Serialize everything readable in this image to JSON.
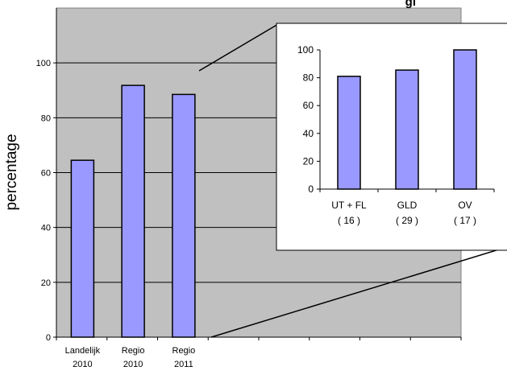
{
  "chart_data": [
    {
      "type": "bar",
      "title_fragment": "gi",
      "ylabel": "percentage",
      "ylim": [
        0,
        120
      ],
      "yticks": [
        "0",
        "20",
        "40",
        "60",
        "80",
        "100"
      ],
      "categories": [
        "Landelijk 2010",
        "Regio 2010",
        "Regio 2011"
      ],
      "category_lines": [
        [
          "Landelijk",
          "2010"
        ],
        [
          "Regio",
          "2010"
        ],
        [
          "Regio",
          "2011"
        ]
      ],
      "values": [
        64.5,
        91.8,
        88.5
      ],
      "bar_color": "#9999ff",
      "plot_bg": "#c0c0c0",
      "grid": true
    },
    {
      "type": "bar",
      "ylim": [
        0,
        100
      ],
      "yticks": [
        "0",
        "20",
        "40",
        "60",
        "80",
        "100"
      ],
      "categories": [
        "UT + FL (16)",
        "GLD (29)",
        "OV (17)"
      ],
      "category_lines": [
        [
          "UT + FL",
          "( 16 )"
        ],
        [
          "GLD",
          "( 29 )"
        ],
        [
          "OV",
          "( 17 )"
        ]
      ],
      "values": [
        81,
        85.5,
        100
      ],
      "bar_color": "#9999ff",
      "grid": false
    }
  ]
}
